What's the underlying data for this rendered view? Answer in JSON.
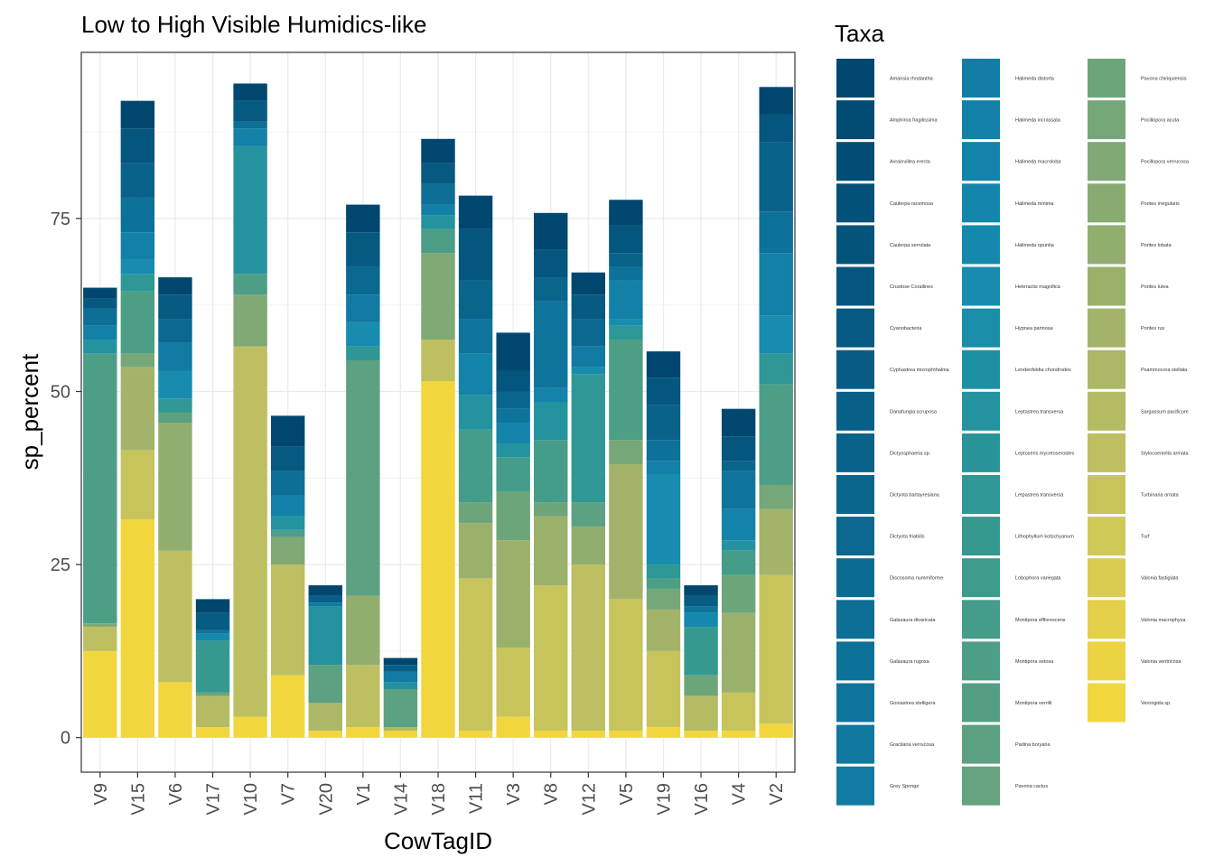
{
  "chart_data": {
    "type": "bar",
    "stacked": true,
    "title": "Low to High Visible Humidics-like",
    "xlabel": "CowTagID",
    "ylabel": "sp_percent",
    "ylim": [
      -5,
      99
    ],
    "yticks": [
      0,
      25,
      50,
      75
    ],
    "grid": true,
    "legend_position": "right",
    "legend_title": "Taxa",
    "categories": [
      "V9",
      "V15",
      "V6",
      "V17",
      "V10",
      "V7",
      "V20",
      "V1",
      "V14",
      "V18",
      "V11",
      "V3",
      "V8",
      "V12",
      "V5",
      "V19",
      "V16",
      "V4",
      "V2"
    ],
    "totals": [
      65.0,
      92.0,
      66.5,
      20.0,
      94.5,
      46.5,
      22.0,
      77.0,
      11.5,
      86.5,
      78.3,
      58.5,
      75.8,
      67.2,
      77.7,
      55.8,
      22.0,
      47.5,
      94.0
    ],
    "segment_breaks": [
      [
        12.5,
        16,
        16.5,
        55.5,
        57.5,
        59.5,
        62,
        63.5,
        65
      ],
      [
        31.5,
        41.5,
        53.5,
        55.5,
        64.5,
        67,
        69,
        73,
        78,
        83,
        88,
        92
      ],
      [
        8,
        27,
        45.5,
        47,
        49,
        53,
        57,
        60.5,
        64,
        66.5
      ],
      [
        1.5,
        6,
        6.5,
        14,
        15,
        15.5,
        18,
        20
      ],
      [
        3,
        56.5,
        64,
        67,
        85.5,
        88,
        89,
        92,
        94.5
      ],
      [
        9,
        25,
        29,
        30,
        32,
        35,
        38.5,
        42,
        46.5
      ],
      [
        1,
        5,
        10.5,
        19,
        19.5,
        20.5,
        22
      ],
      [
        1.5,
        10.5,
        20.5,
        54.5,
        56.5,
        60,
        64,
        68,
        73,
        77
      ],
      [
        1,
        1.5,
        7,
        8,
        9.5,
        10.5,
        11.5
      ],
      [
        51.5,
        57.5,
        70,
        73.5,
        75.5,
        77,
        80,
        83,
        86.5
      ],
      [
        1,
        23,
        31,
        34,
        44.5,
        49.5,
        55.5,
        60.5,
        66,
        73.5,
        78.3
      ],
      [
        3,
        13,
        28.5,
        35.5,
        40.5,
        42.5,
        45.5,
        47.5,
        50,
        53,
        58.5
      ],
      [
        1,
        22,
        32,
        34,
        43,
        48.5,
        50.5,
        63,
        66.5,
        70.5,
        75.8
      ],
      [
        1,
        25,
        30.5,
        34,
        52.5,
        53.5,
        56.5,
        60.5,
        64,
        67.2
      ],
      [
        1,
        20,
        39.5,
        43,
        57.5,
        59.5,
        60.5,
        66,
        68,
        70,
        74,
        77.7
      ],
      [
        1.5,
        12.5,
        18.5,
        21.5,
        23,
        25,
        38,
        40,
        43,
        48,
        52,
        55.8
      ],
      [
        1,
        6,
        9,
        16,
        18,
        19,
        20.5,
        22
      ],
      [
        1,
        6.5,
        18,
        23.5,
        27,
        28.5,
        33,
        38.5,
        40,
        43.5,
        47.5
      ],
      [
        2,
        23.5,
        33,
        36.5,
        51,
        55.5,
        61,
        70,
        76,
        86,
        90,
        94
      ]
    ],
    "taxa": [
      {
        "name": "Amansia rhodantha",
        "color": "#00476f"
      },
      {
        "name": "Amphiroa fragilissima",
        "color": "#014a72"
      },
      {
        "name": "Avrainvillea erecta",
        "color": "#024d75"
      },
      {
        "name": "Caulerpa racemosa",
        "color": "#035078"
      },
      {
        "name": "Caulerpa serrulata",
        "color": "#04537b"
      },
      {
        "name": "Crustose Corallines",
        "color": "#05567e"
      },
      {
        "name": "Cyanobacteria",
        "color": "#065981"
      },
      {
        "name": "Cyphastrea microphthalma",
        "color": "#075c84"
      },
      {
        "name": "Danafungia scruposa",
        "color": "#085f87"
      },
      {
        "name": "Dictyosphaeria sp.",
        "color": "#09628a"
      },
      {
        "name": "Dictyota bartayresiana",
        "color": "#0a658d"
      },
      {
        "name": "Dictyota friabilis",
        "color": "#0b6890"
      },
      {
        "name": "Discosoma nummiforme",
        "color": "#0c6b93"
      },
      {
        "name": "Galaxaura divaricata",
        "color": "#0d6e96"
      },
      {
        "name": "Galaxaura rugosa",
        "color": "#0e7199"
      },
      {
        "name": "Goniastrea stelligera",
        "color": "#0f749c"
      },
      {
        "name": "Gracilaria verrucosa",
        "color": "#10779f"
      },
      {
        "name": "Grey Sponge",
        "color": "#117aa2"
      },
      {
        "name": "Halimeda distorta",
        "color": "#127da5"
      },
      {
        "name": "Halimeda incrassata",
        "color": "#1380a8"
      },
      {
        "name": "Halimeda macroloba",
        "color": "#1483aa"
      },
      {
        "name": "Halimeda minima",
        "color": "#1486ac"
      },
      {
        "name": "Halimeda opuntia",
        "color": "#1589ad"
      },
      {
        "name": "Heteractis magnifica",
        "color": "#178cae"
      },
      {
        "name": "Hypnea pannosa",
        "color": "#1a8ea9"
      },
      {
        "name": "Lendenfeldia chondrodes",
        "color": "#1e90a4"
      },
      {
        "name": "Leptastrea transversa",
        "color": "#23939f"
      },
      {
        "name": "Leptoseris mycetoseroides",
        "color": "#28949a"
      },
      {
        "name": "Letpastrea transversa",
        "color": "#2f9795"
      },
      {
        "name": "Lithophyllum kotschyanum",
        "color": "#369990"
      },
      {
        "name": "Lobophora variegata",
        "color": "#3d9b8c"
      },
      {
        "name": "Montipora efflorescens",
        "color": "#449c89"
      },
      {
        "name": "Montipora setosa",
        "color": "#4c9e86"
      },
      {
        "name": "Montipora verrilli",
        "color": "#549f84"
      },
      {
        "name": "Padina boryana",
        "color": "#5ca181"
      },
      {
        "name": "Pavona cactus",
        "color": "#64a37e"
      },
      {
        "name": "Pavona chiriquiensis",
        "color": "#6da57b"
      },
      {
        "name": "Pocillopora acuta",
        "color": "#76a778"
      },
      {
        "name": "Pocillopora verrucosa",
        "color": "#7fa975"
      },
      {
        "name": "Porites irregularis",
        "color": "#88ab72"
      },
      {
        "name": "Porites lobata",
        "color": "#91ae6f"
      },
      {
        "name": "Porites lutea",
        "color": "#9ab16c"
      },
      {
        "name": "Porites rus",
        "color": "#a3b46a"
      },
      {
        "name": "Psammocora stellata",
        "color": "#acb767"
      },
      {
        "name": "Sargassum pacificum",
        "color": "#b5bb64"
      },
      {
        "name": "Stylocoeniella armata",
        "color": "#bebf60"
      },
      {
        "name": "Turbinaria ornata",
        "color": "#c7c45c"
      },
      {
        "name": "Turf",
        "color": "#d0c957"
      },
      {
        "name": "Valonia fastigiata",
        "color": "#d9cc50"
      },
      {
        "name": "Valonia macrophysa",
        "color": "#e3cf48"
      },
      {
        "name": "Valonia ventricosa",
        "color": "#ecd341"
      },
      {
        "name": "Verongida sp.",
        "color": "#f2d63e"
      }
    ]
  }
}
